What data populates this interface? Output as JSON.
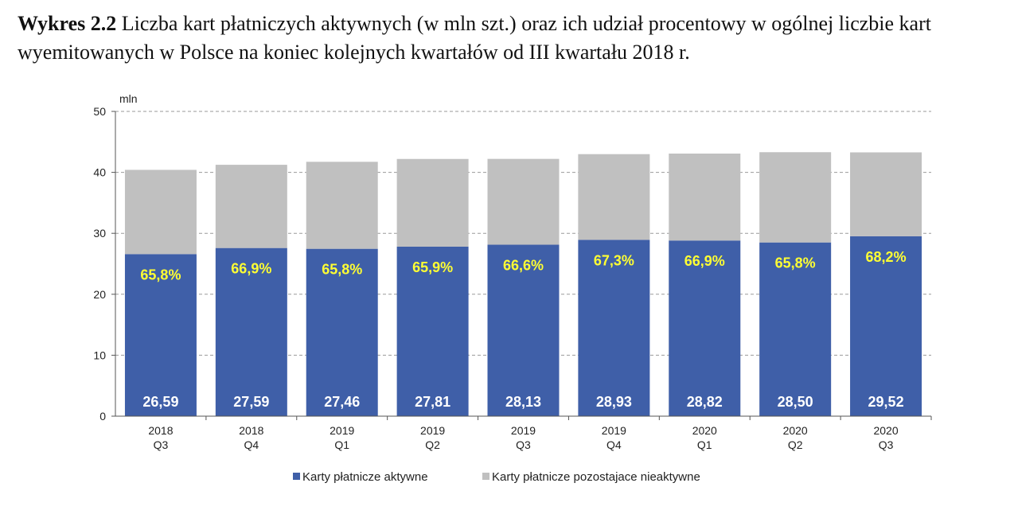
{
  "caption": {
    "prefix": "Wykres 2.2",
    "text": "Liczba kart płatniczych aktywnych (w mln szt.) oraz ich udział procentowy w ogólnej liczbie kart wyemitowanych w Polsce na koniec kolejnych kwartałów od III kwartału 2018 r."
  },
  "chart_data": {
    "type": "bar",
    "stacked": true,
    "ylabel": "mln",
    "ylim": [
      0,
      50
    ],
    "yticks": [
      0,
      10,
      20,
      30,
      40,
      50
    ],
    "grid": true,
    "legend_position": "bottom",
    "categories": [
      {
        "year": "2018",
        "quarter": "Q3"
      },
      {
        "year": "2018",
        "quarter": "Q4"
      },
      {
        "year": "2019",
        "quarter": "Q1"
      },
      {
        "year": "2019",
        "quarter": "Q2"
      },
      {
        "year": "2019",
        "quarter": "Q3"
      },
      {
        "year": "2019",
        "quarter": "Q4"
      },
      {
        "year": "2020",
        "quarter": "Q1"
      },
      {
        "year": "2020",
        "quarter": "Q2"
      },
      {
        "year": "2020",
        "quarter": "Q3"
      }
    ],
    "series": [
      {
        "name": "Karty płatnicze aktywne",
        "color": "#3f5fa8",
        "values": [
          26.59,
          27.59,
          27.46,
          27.81,
          28.13,
          28.93,
          28.82,
          28.5,
          29.52
        ],
        "value_labels": [
          "26,59",
          "27,59",
          "27,46",
          "27,81",
          "28,13",
          "28,93",
          "28,82",
          "28,50",
          "29,52"
        ],
        "share_labels": [
          "65,8%",
          "66,9%",
          "65,8%",
          "65,9%",
          "66,6%",
          "67,3%",
          "66,9%",
          "65,8%",
          "68,2%"
        ]
      },
      {
        "name": "Karty płatnicze pozostajace nieaktywne",
        "color": "#c0c0c0",
        "values": [
          13.82,
          13.65,
          14.27,
          14.39,
          14.08,
          14.06,
          14.26,
          14.81,
          13.76
        ]
      }
    ]
  }
}
